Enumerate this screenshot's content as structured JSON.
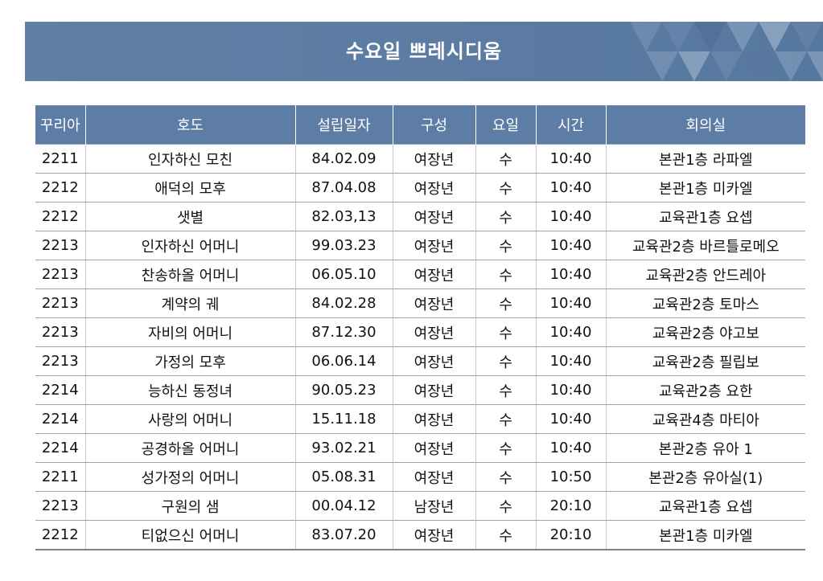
{
  "banner": {
    "title": "수요일 쁘레시디움"
  },
  "table": {
    "headers": [
      "꾸리아",
      "호도",
      "설립일자",
      "구성",
      "요일",
      "시간",
      "회의실"
    ],
    "rows": [
      [
        "2211",
        "인자하신 모친",
        "84.02.09",
        "여장년",
        "수",
        "10:40",
        "본관1층 라파엘"
      ],
      [
        "2212",
        "애덕의 모후",
        "87.04.08",
        "여장년",
        "수",
        "10:40",
        "본관1층 미카엘"
      ],
      [
        "2212",
        "샛별",
        "82.03,13",
        "여장년",
        "수",
        "10:40",
        "교육관1층 요셉"
      ],
      [
        "2213",
        "인자하신 어머니",
        "99.03.23",
        "여장년",
        "수",
        "10:40",
        "교육관2층 바르틀로메오"
      ],
      [
        "2213",
        "찬송하올 어머니",
        "06.05.10",
        "여장년",
        "수",
        "10:40",
        "교육관2층 안드레아"
      ],
      [
        "2213",
        "계약의 궤",
        "84.02.28",
        "여장년",
        "수",
        "10:40",
        "교육관2층 토마스"
      ],
      [
        "2213",
        "자비의 어머니",
        "87.12.30",
        "여장년",
        "수",
        "10:40",
        "교육관2층 야고보"
      ],
      [
        "2213",
        "가정의 모후",
        "06.06.14",
        "여장년",
        "수",
        "10:40",
        "교육관2층 필립보"
      ],
      [
        "2214",
        "능하신 동정녀",
        "90.05.23",
        "여장년",
        "수",
        "10:40",
        "교육관2층 요한"
      ],
      [
        "2214",
        "사랑의 어머니",
        "15.11.18",
        "여장년",
        "수",
        "10:40",
        "교육관4층 마티아"
      ],
      [
        "2214",
        "공경하올 어머니",
        "93.02.21",
        "여장년",
        "수",
        "10:40",
        "본관2층 유아 1"
      ],
      [
        "2211",
        "성가정의 어머니",
        "05.08.31",
        "여장년",
        "수",
        "10:50",
        "본관2층 유아실(1)"
      ],
      [
        "2213",
        "구원의 샘",
        "00.04.12",
        "남장년",
        "수",
        "20:10",
        "교육관1층 요셉"
      ],
      [
        "2212",
        "티없으신 어머니",
        "83.07.20",
        "여장년",
        "수",
        "20:10",
        "본관1층 미카엘"
      ]
    ]
  }
}
